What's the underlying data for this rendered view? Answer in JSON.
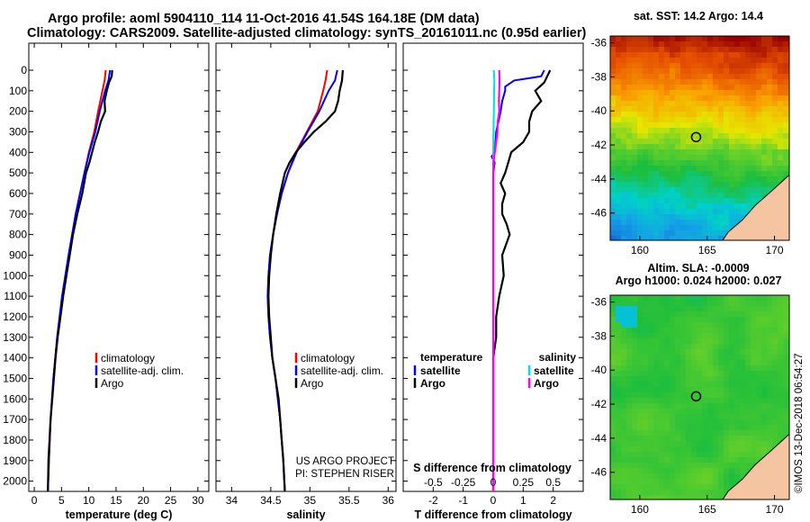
{
  "title": {
    "line1": "Argo profile: aoml 5904110_114 11-Oct-2016 41.54S 164.18E (DM data)",
    "line2": "Climatology: CARS2009. Satellite-adjusted climatology: synTS_20161011.nc (0.95d earlier)"
  },
  "depth_axis": {
    "ticks": [
      0,
      100,
      200,
      300,
      400,
      500,
      600,
      700,
      800,
      900,
      1000,
      1100,
      1200,
      1300,
      1400,
      1500,
      1600,
      1700,
      1800,
      1900,
      2000
    ],
    "ylim": [
      2050,
      0
    ]
  },
  "credit": {
    "line1": "US ARGO PROJECT",
    "line2": "PI: STEPHEN RISER"
  },
  "stamp": "©IMOS 13-Dec-2018 06:54:27",
  "colors": {
    "climatology": "#ff0000",
    "satellite": "#0000ff",
    "argo": "#000000",
    "sat_salinity": "#00e0e0",
    "clim_salinity": "#ff00ff",
    "land": "#f5c4a0"
  },
  "chart_data": [
    {
      "id": "temperature",
      "type": "line",
      "xlabel": "temperature (deg C)",
      "xlim": [
        -1,
        32
      ],
      "xticks": [
        0,
        5,
        10,
        15,
        20,
        25,
        30
      ],
      "ylim": [
        2050,
        0
      ],
      "legend": {
        "placement": "lower-right",
        "entries": [
          "climatology",
          "satellite-adj. clim.",
          "Argo"
        ]
      },
      "series": [
        {
          "name": "climatology",
          "color": "#ff0000",
          "depth": [
            0,
            50,
            100,
            200,
            300,
            400,
            500,
            700,
            900,
            1100,
            1300,
            1500,
            1700,
            1900,
            2050
          ],
          "values": [
            13.1,
            12.9,
            12.5,
            11.7,
            11.0,
            10.0,
            9.2,
            7.6,
            6.3,
            5.1,
            4.2,
            3.5,
            3.0,
            2.7,
            2.5
          ]
        },
        {
          "name": "satellite-adj. clim.",
          "color": "#0000ff",
          "depth": [
            0,
            50,
            100,
            200,
            300,
            400,
            500,
            700,
            900,
            1100,
            1300,
            1500,
            1700,
            1900,
            2050
          ],
          "values": [
            13.9,
            13.6,
            13.0,
            12.0,
            11.2,
            10.1,
            9.2,
            7.6,
            6.3,
            5.1,
            4.2,
            3.5,
            3.0,
            2.7,
            2.5
          ]
        },
        {
          "name": "Argo",
          "color": "#000000",
          "depth": [
            0,
            30,
            60,
            100,
            150,
            200,
            250,
            300,
            350,
            400,
            450,
            500,
            600,
            700,
            800,
            900,
            1000,
            1100,
            1200,
            1300,
            1400,
            1500,
            1600,
            1700,
            1800,
            1900,
            2050
          ],
          "values": [
            14.3,
            14.2,
            13.7,
            13.3,
            12.9,
            13.0,
            12.2,
            11.7,
            11.1,
            10.6,
            10.1,
            9.5,
            8.8,
            7.9,
            7.1,
            6.5,
            5.9,
            5.3,
            4.8,
            4.3,
            3.9,
            3.6,
            3.3,
            3.0,
            2.8,
            2.6,
            2.5
          ]
        }
      ]
    },
    {
      "id": "salinity",
      "type": "line",
      "xlabel": "salinity",
      "xlim": [
        33.8,
        36.1
      ],
      "xticks": [
        34,
        34.5,
        35,
        35.5,
        36
      ],
      "ylim": [
        2050,
        0
      ],
      "legend": {
        "placement": "lower-right",
        "entries": [
          "climatology",
          "satellite-adj. clim.",
          "Argo"
        ]
      },
      "series": [
        {
          "name": "climatology",
          "color": "#ff0000",
          "depth": [
            0,
            50,
            100,
            200,
            300,
            400,
            500,
            600,
            700,
            800,
            900,
            1000,
            1100,
            1200,
            1300,
            1400,
            1500,
            1600,
            1700,
            1800,
            1900,
            2050
          ],
          "values": [
            35.22,
            35.2,
            35.17,
            35.1,
            34.96,
            34.82,
            34.72,
            34.64,
            34.58,
            34.53,
            34.49,
            34.47,
            34.46,
            34.47,
            34.49,
            34.52,
            34.56,
            34.59,
            34.62,
            34.64,
            34.66,
            34.68
          ]
        },
        {
          "name": "satellite-adj. clim.",
          "color": "#0000ff",
          "depth": [
            0,
            50,
            100,
            200,
            300,
            400,
            500,
            600,
            700,
            800,
            900,
            1000,
            1100,
            1200,
            1300,
            1400,
            1500,
            1600,
            1700,
            1800,
            1900,
            2050
          ],
          "values": [
            35.35,
            35.32,
            35.24,
            35.12,
            34.97,
            34.83,
            34.72,
            34.64,
            34.58,
            34.53,
            34.49,
            34.47,
            34.46,
            34.47,
            34.49,
            34.52,
            34.56,
            34.59,
            34.62,
            34.64,
            34.66,
            34.68
          ]
        },
        {
          "name": "Argo",
          "color": "#000000",
          "depth": [
            0,
            50,
            100,
            150,
            200,
            250,
            300,
            350,
            400,
            450,
            500,
            600,
            700,
            800,
            900,
            1000,
            1100,
            1200,
            1300,
            1400,
            1500,
            1600,
            1700,
            1800,
            1900,
            2050
          ],
          "values": [
            35.42,
            35.41,
            35.38,
            35.36,
            35.32,
            35.2,
            35.05,
            34.93,
            34.82,
            34.74,
            34.68,
            34.62,
            34.57,
            34.53,
            34.5,
            34.48,
            34.47,
            34.48,
            34.5,
            34.52,
            34.56,
            34.6,
            34.62,
            34.64,
            34.66,
            34.68
          ]
        }
      ]
    },
    {
      "id": "difference",
      "type": "line",
      "xlabel": "T difference from climatology",
      "xlabel_top": "S difference from climatology",
      "xlim": [
        -3,
        3
      ],
      "xticks": [
        -2,
        -1,
        0,
        1,
        2
      ],
      "xticks_s": [
        -0.5,
        -0.25,
        0,
        0.25,
        0.5
      ],
      "xtick_labels_s": [
        "-0.5",
        "-0.25",
        "0",
        "0.25",
        "0.5"
      ],
      "ylim": [
        2050,
        0
      ],
      "legend": {
        "placement": "lower",
        "header_left": "temperature",
        "header_right": "salinity",
        "entries_left": [
          "satellite",
          "Argo"
        ],
        "entries_right": [
          "satellite",
          "Argo"
        ]
      },
      "series": [
        {
          "name": "temperature satellite",
          "color": "#0000ff",
          "depth": [
            0,
            30,
            50,
            80,
            100,
            150,
            200,
            300,
            400,
            420,
            450,
            500,
            600,
            700,
            800,
            1000,
            1200,
            1400,
            1600,
            1800,
            2050
          ],
          "values": [
            1.7,
            1.6,
            0.7,
            0.4,
            0.4,
            0.3,
            0.25,
            0.1,
            0.05,
            -0.05,
            0.05,
            0.0,
            0.0,
            0.0,
            0.0,
            0.0,
            0.0,
            0.0,
            0.0,
            0.0,
            0.0
          ]
        },
        {
          "name": "temperature Argo",
          "color": "#000000",
          "depth": [
            0,
            30,
            60,
            100,
            150,
            200,
            250,
            300,
            350,
            400,
            450,
            500,
            550,
            600,
            650,
            700,
            750,
            800,
            900,
            1000,
            1100,
            1200,
            1300,
            1400,
            1500,
            1600,
            1800,
            2000,
            2050
          ],
          "values": [
            1.9,
            1.8,
            1.7,
            1.4,
            1.6,
            1.3,
            1.2,
            1.2,
            1.0,
            0.6,
            0.5,
            0.4,
            0.25,
            0.4,
            0.3,
            0.3,
            0.45,
            0.55,
            0.3,
            0.35,
            0.2,
            0.1,
            0.1,
            0.0,
            0.0,
            0.0,
            0.0,
            0.0,
            0.0
          ]
        },
        {
          "name": "salinity satellite",
          "color": "#00e0e0",
          "depth": [
            0,
            50,
            100,
            200,
            300,
            400,
            500,
            700,
            900,
            1100,
            1300,
            1500,
            1700,
            1900,
            2050
          ],
          "values": [
            0.02,
            0.04,
            0.03,
            0.02,
            0.01,
            0.0,
            0.0,
            0.0,
            0.0,
            0.0,
            0.0,
            0.0,
            0.0,
            0.0,
            0.0
          ]
        },
        {
          "name": "salinity Argo",
          "color": "#ff00ff",
          "depth": [
            0,
            50,
            100,
            150,
            200,
            250,
            300,
            350,
            400,
            450,
            500,
            600,
            800,
            1000,
            1200,
            1400,
            1600,
            1800,
            2050
          ],
          "values": [
            0.2,
            0.21,
            0.2,
            0.19,
            0.2,
            0.15,
            0.14,
            0.1,
            0.05,
            0.01,
            0.0,
            0.0,
            0.0,
            0.0,
            0.0,
            0.0,
            0.0,
            0.0,
            0.0
          ]
        }
      ]
    },
    {
      "id": "sst-map",
      "type": "heatmap",
      "title": "sat. SST: 14.2  Argo: 14.4",
      "xticks": [
        160,
        165,
        170
      ],
      "yticks": [
        -36,
        -38,
        -40,
        -42,
        -44,
        -46
      ],
      "xlim": [
        157.8,
        171.1
      ],
      "ylim": [
        -47.6,
        -35.6
      ],
      "argo_position": {
        "lon": 164.18,
        "lat": -41.54
      }
    },
    {
      "id": "sla-map",
      "type": "heatmap",
      "title_line1": "Altim. SLA: -0.0009",
      "title_line2": "Argo h1000: 0.024 h2000: 0.027",
      "xticks": [
        160,
        165,
        170
      ],
      "yticks": [
        -36,
        -38,
        -40,
        -42,
        -44,
        -46
      ],
      "xlim": [
        157.8,
        171.1
      ],
      "ylim": [
        -47.6,
        -35.6
      ],
      "argo_position": {
        "lon": 164.18,
        "lat": -41.54
      }
    }
  ]
}
